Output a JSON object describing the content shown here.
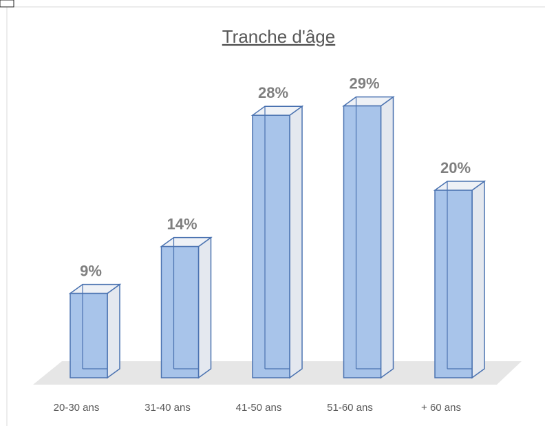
{
  "chart_data": {
    "type": "bar3d",
    "title": "Tranche d'âge",
    "categories": [
      "20-30 ans",
      "31-40 ans",
      "41-50 ans",
      "51-60 ans",
      "+ 60 ans"
    ],
    "values": [
      9,
      14,
      28,
      29,
      20
    ],
    "value_labels": [
      "9%",
      "14%",
      "28%",
      "29%",
      "20%"
    ],
    "color": "#a3c1e9"
  }
}
